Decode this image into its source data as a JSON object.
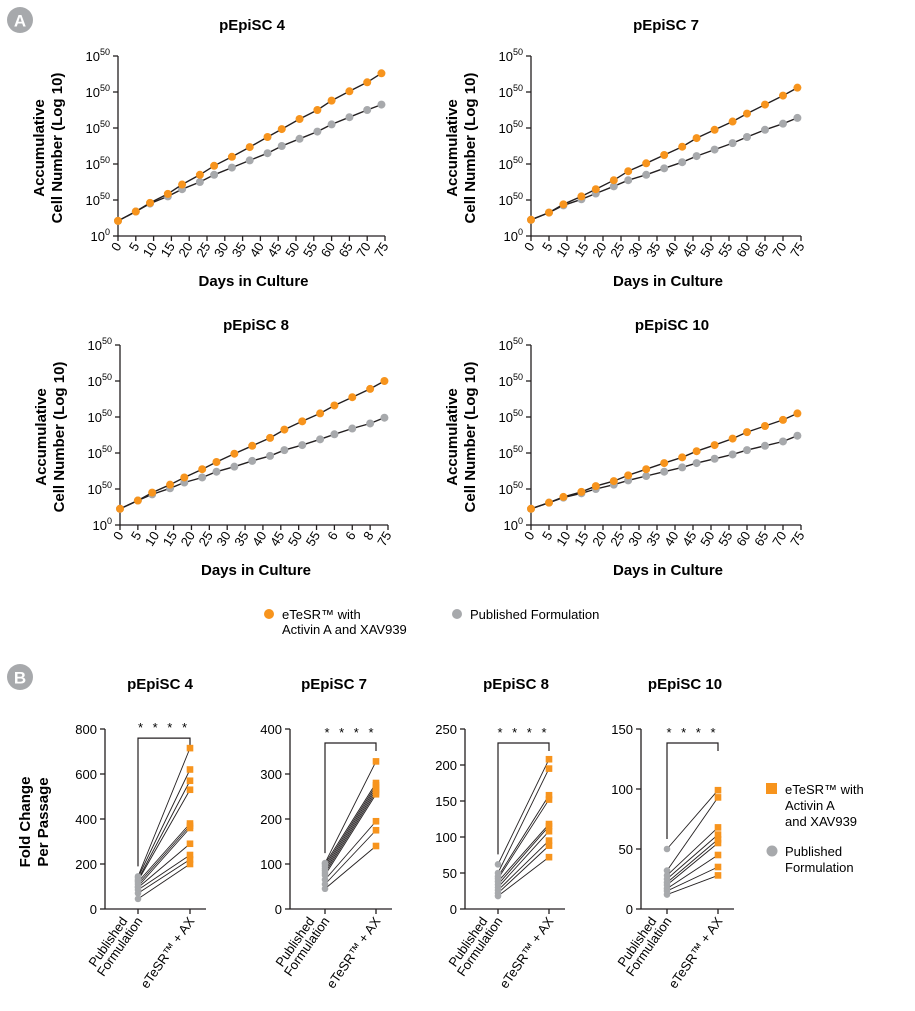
{
  "panel_labels": [
    "A",
    "B"
  ],
  "colors": {
    "eTeSR": "#f7941d",
    "published": "#a7a9ac",
    "line": "#231f20"
  },
  "legend_a": {
    "items": [
      {
        "key": "eTeSR",
        "lines": [
          "eTeSR™ with",
          "Activin A and XAV939"
        ]
      },
      {
        "key": "published",
        "lines": [
          "Published Formulation"
        ]
      }
    ]
  },
  "legend_b": {
    "items": [
      {
        "key": "eTeSR",
        "lines": [
          "eTeSR™ with",
          "Activin A",
          "and XAV939"
        ]
      },
      {
        "key": "published",
        "lines": [
          "Published",
          "Formulation"
        ]
      }
    ]
  },
  "chart_data": [
    {
      "type": "line",
      "panel": "A",
      "title": "pEpiSC 4",
      "xlabel": "Days in Culture",
      "ylabel": [
        "Accumulative",
        "Cell Number (Log 10)"
      ],
      "xlim": [
        0,
        75
      ],
      "ylim": [
        0,
        5
      ],
      "x_tick_labels": [
        "0",
        "5",
        "10",
        "15",
        "20",
        "25",
        "30",
        "35",
        "40",
        "45",
        "50",
        "55",
        "60",
        "65",
        "70",
        "75"
      ],
      "y_tick_labels": [
        {
          "base": "10",
          "exp": "0"
        },
        {
          "base": "10",
          "exp": "50"
        },
        {
          "base": "10",
          "exp": "50"
        },
        {
          "base": "10",
          "exp": "50"
        },
        {
          "base": "10",
          "exp": "50"
        },
        {
          "base": "10",
          "exp": "50"
        }
      ],
      "series": [
        {
          "key": "eTeSR",
          "x": [
            0,
            5,
            9,
            14,
            18,
            23,
            27,
            32,
            37,
            42,
            46,
            51,
            56,
            60,
            65,
            70,
            74
          ],
          "y": [
            0.42,
            0.68,
            0.92,
            1.17,
            1.43,
            1.7,
            1.95,
            2.2,
            2.47,
            2.75,
            2.97,
            3.25,
            3.5,
            3.76,
            4.02,
            4.27,
            4.52
          ]
        },
        {
          "key": "published",
          "x": [
            0,
            5,
            9,
            14,
            18,
            23,
            27,
            32,
            37,
            42,
            46,
            51,
            56,
            60,
            65,
            70,
            74
          ],
          "y": [
            0.42,
            0.68,
            0.9,
            1.1,
            1.3,
            1.5,
            1.7,
            1.9,
            2.1,
            2.3,
            2.5,
            2.7,
            2.9,
            3.1,
            3.3,
            3.5,
            3.65
          ]
        }
      ]
    },
    {
      "type": "line",
      "panel": "A",
      "title": "pEpiSC 7",
      "xlabel": "Days in Culture",
      "ylabel": [
        "Accumulative",
        "Cell Number (Log 10)"
      ],
      "xlim": [
        0,
        75
      ],
      "ylim": [
        0,
        5
      ],
      "x_tick_labels": [
        "0",
        "5",
        "10",
        "15",
        "20",
        "25",
        "30",
        "35",
        "40",
        "45",
        "50",
        "55",
        "60",
        "65",
        "70",
        "75"
      ],
      "y_tick_labels": [
        {
          "base": "10",
          "exp": "0"
        },
        {
          "base": "10",
          "exp": "50"
        },
        {
          "base": "10",
          "exp": "50"
        },
        {
          "base": "10",
          "exp": "50"
        },
        {
          "base": "10",
          "exp": "50"
        },
        {
          "base": "10",
          "exp": "50"
        }
      ],
      "series": [
        {
          "key": "eTeSR",
          "x": [
            0,
            5,
            9,
            14,
            18,
            23,
            27,
            32,
            37,
            42,
            46,
            51,
            56,
            60,
            65,
            70,
            74
          ],
          "y": [
            0.45,
            0.65,
            0.88,
            1.1,
            1.3,
            1.55,
            1.8,
            2.02,
            2.25,
            2.48,
            2.72,
            2.95,
            3.18,
            3.4,
            3.65,
            3.9,
            4.12
          ]
        },
        {
          "key": "published",
          "x": [
            0,
            5,
            9,
            14,
            18,
            23,
            27,
            32,
            37,
            42,
            46,
            51,
            56,
            60,
            65,
            70,
            74
          ],
          "y": [
            0.45,
            0.65,
            0.85,
            1.02,
            1.18,
            1.38,
            1.55,
            1.7,
            1.88,
            2.05,
            2.22,
            2.4,
            2.58,
            2.75,
            2.95,
            3.12,
            3.28
          ]
        }
      ]
    },
    {
      "type": "line",
      "panel": "A",
      "title": "pEpiSC 8",
      "xlabel": "Days in Culture",
      "ylabel": [
        "Accumulative",
        "Cell Number (Log 10)"
      ],
      "xlim": [
        0,
        75
      ],
      "ylim": [
        0,
        5
      ],
      "x_tick_labels": [
        "0",
        "5",
        "10",
        "15",
        "20",
        "25",
        "30",
        "35",
        "40",
        "45",
        "50",
        "55",
        "6",
        "6",
        "8",
        "75"
      ],
      "y_tick_labels": [
        {
          "base": "10",
          "exp": "0"
        },
        {
          "base": "10",
          "exp": "50"
        },
        {
          "base": "10",
          "exp": "50"
        },
        {
          "base": "10",
          "exp": "50"
        },
        {
          "base": "10",
          "exp": "50"
        },
        {
          "base": "10",
          "exp": "50"
        }
      ],
      "series": [
        {
          "key": "eTeSR",
          "x": [
            0,
            5,
            9,
            14,
            18,
            23,
            27,
            32,
            37,
            42,
            46,
            51,
            56,
            60,
            65,
            70,
            74
          ],
          "y": [
            0.45,
            0.68,
            0.9,
            1.12,
            1.32,
            1.55,
            1.75,
            1.98,
            2.2,
            2.42,
            2.65,
            2.88,
            3.1,
            3.32,
            3.55,
            3.78,
            4.0
          ]
        },
        {
          "key": "published",
          "x": [
            0,
            5,
            9,
            14,
            18,
            23,
            27,
            32,
            37,
            42,
            46,
            51,
            56,
            60,
            65,
            70,
            74
          ],
          "y": [
            0.45,
            0.68,
            0.85,
            1.02,
            1.18,
            1.32,
            1.48,
            1.62,
            1.78,
            1.92,
            2.08,
            2.22,
            2.38,
            2.52,
            2.68,
            2.82,
            2.98
          ]
        }
      ]
    },
    {
      "type": "line",
      "panel": "A",
      "title": "pEpiSC 10",
      "xlabel": "Days in Culture",
      "ylabel": [
        "Accumulative",
        "Cell Number (Log 10)"
      ],
      "xlim": [
        0,
        75
      ],
      "ylim": [
        0,
        5
      ],
      "x_tick_labels": [
        "0",
        "5",
        "10",
        "15",
        "20",
        "25",
        "30",
        "35",
        "40",
        "45",
        "50",
        "55",
        "60",
        "65",
        "70",
        "75"
      ],
      "y_tick_labels": [
        {
          "base": "10",
          "exp": "0"
        },
        {
          "base": "10",
          "exp": "50"
        },
        {
          "base": "10",
          "exp": "50"
        },
        {
          "base": "10",
          "exp": "50"
        },
        {
          "base": "10",
          "exp": "50"
        },
        {
          "base": "10",
          "exp": "50"
        }
      ],
      "series": [
        {
          "key": "eTeSR",
          "x": [
            0,
            5,
            9,
            14,
            18,
            23,
            27,
            32,
            37,
            42,
            46,
            51,
            56,
            60,
            65,
            70,
            74
          ],
          "y": [
            0.45,
            0.62,
            0.78,
            0.92,
            1.08,
            1.22,
            1.38,
            1.55,
            1.72,
            1.88,
            2.05,
            2.22,
            2.4,
            2.58,
            2.75,
            2.92,
            3.1
          ]
        },
        {
          "key": "published",
          "x": [
            0,
            5,
            9,
            14,
            18,
            23,
            27,
            32,
            37,
            42,
            46,
            51,
            56,
            60,
            65,
            70,
            74
          ],
          "y": [
            0.45,
            0.62,
            0.76,
            0.88,
            1.0,
            1.12,
            1.24,
            1.36,
            1.48,
            1.6,
            1.72,
            1.84,
            1.96,
            2.08,
            2.2,
            2.32,
            2.48
          ]
        }
      ]
    },
    {
      "type": "scatter",
      "panel": "B",
      "title": "pEpiSC 4",
      "ylabel": [
        "Fold Change",
        "Per Passage"
      ],
      "categories": [
        [
          "Published",
          "Formulation"
        ],
        [
          "eTeSR™ + AX"
        ]
      ],
      "ylim": [
        0,
        800
      ],
      "yticks": [
        0,
        200,
        400,
        600,
        800
      ],
      "significance": "* * * *",
      "pairs": [
        [
          45,
          200
        ],
        [
          70,
          220
        ],
        [
          85,
          240
        ],
        [
          95,
          290
        ],
        [
          100,
          360
        ],
        [
          110,
          370
        ],
        [
          120,
          380
        ],
        [
          125,
          530
        ],
        [
          130,
          570
        ],
        [
          140,
          620
        ],
        [
          145,
          715
        ]
      ]
    },
    {
      "type": "scatter",
      "panel": "B",
      "title": "pEpiSC 7",
      "ylabel": [
        "Fold Change",
        "Per Passage"
      ],
      "categories": [
        [
          "Published",
          "Formulation"
        ],
        [
          "eTeSR™ + AX"
        ]
      ],
      "ylim": [
        0,
        400
      ],
      "yticks": [
        0,
        100,
        200,
        300,
        400
      ],
      "significance": "* * * *",
      "pairs": [
        [
          45,
          140
        ],
        [
          55,
          175
        ],
        [
          65,
          195
        ],
        [
          75,
          255
        ],
        [
          80,
          260
        ],
        [
          85,
          265
        ],
        [
          90,
          270
        ],
        [
          95,
          275
        ],
        [
          100,
          280
        ],
        [
          102,
          328
        ]
      ]
    },
    {
      "type": "scatter",
      "panel": "B",
      "title": "pEpiSC 8",
      "ylabel": [
        "Fold Change",
        "Per Passage"
      ],
      "categories": [
        [
          "Published",
          "Formulation"
        ],
        [
          "eTeSR™ + AX"
        ]
      ],
      "ylim": [
        0,
        250
      ],
      "yticks": [
        0,
        50,
        100,
        150,
        200,
        250
      ],
      "significance": "* * * *",
      "pairs": [
        [
          18,
          72
        ],
        [
          22,
          88
        ],
        [
          26,
          95
        ],
        [
          30,
          108
        ],
        [
          34,
          115
        ],
        [
          38,
          118
        ],
        [
          42,
          152
        ],
        [
          45,
          158
        ],
        [
          50,
          195
        ],
        [
          62,
          208
        ]
      ]
    },
    {
      "type": "scatter",
      "panel": "B",
      "title": "pEpiSC 10",
      "ylabel": [
        "Fold Change",
        "Per Passage"
      ],
      "categories": [
        [
          "Published",
          "Formulation"
        ],
        [
          "eTeSR™ + AX"
        ]
      ],
      "ylim": [
        0,
        150
      ],
      "yticks": [
        0,
        50,
        100,
        150
      ],
      "significance": "* * * *",
      "pairs": [
        [
          12,
          28
        ],
        [
          15,
          35
        ],
        [
          17,
          45
        ],
        [
          20,
          55
        ],
        [
          22,
          58
        ],
        [
          25,
          62
        ],
        [
          28,
          68
        ],
        [
          32,
          93
        ],
        [
          50,
          99
        ]
      ]
    }
  ]
}
